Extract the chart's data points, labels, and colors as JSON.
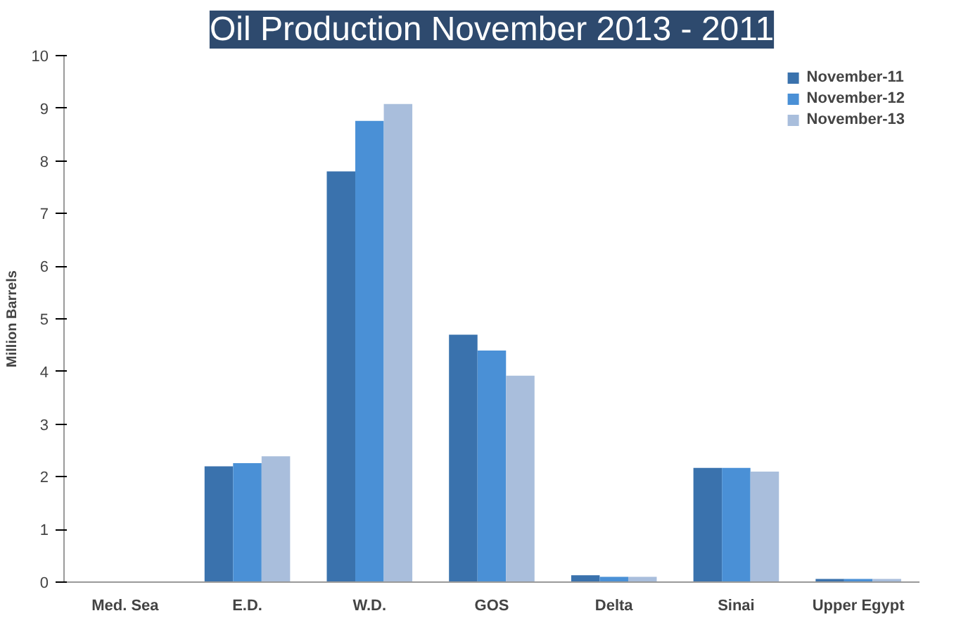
{
  "chart_data": {
    "type": "bar",
    "title": "Oil Production November 2013 - 2011",
    "ylabel": "Million Barrels",
    "categories": [
      "Med. Sea",
      "E.D.",
      "W.D.",
      "GOS",
      "Delta",
      "Sinai",
      "Upper Egypt"
    ],
    "series": [
      {
        "name": "November-11",
        "color": "#3a72ad",
        "values": [
          0,
          2.2,
          7.8,
          4.7,
          0.13,
          2.17,
          0.06
        ]
      },
      {
        "name": "November-12",
        "color": "#4a90d6",
        "values": [
          0,
          2.26,
          8.76,
          4.4,
          0.1,
          2.17,
          0.06
        ]
      },
      {
        "name": "November-13",
        "color": "#a9bedc",
        "values": [
          0,
          2.39,
          9.08,
          3.92,
          0.1,
          2.1,
          0.06
        ]
      }
    ],
    "ylim": [
      0,
      10
    ],
    "yticks": [
      0,
      1,
      2,
      3,
      4,
      5,
      6,
      7,
      8,
      9,
      10
    ],
    "grid": false,
    "legend": "top right"
  }
}
